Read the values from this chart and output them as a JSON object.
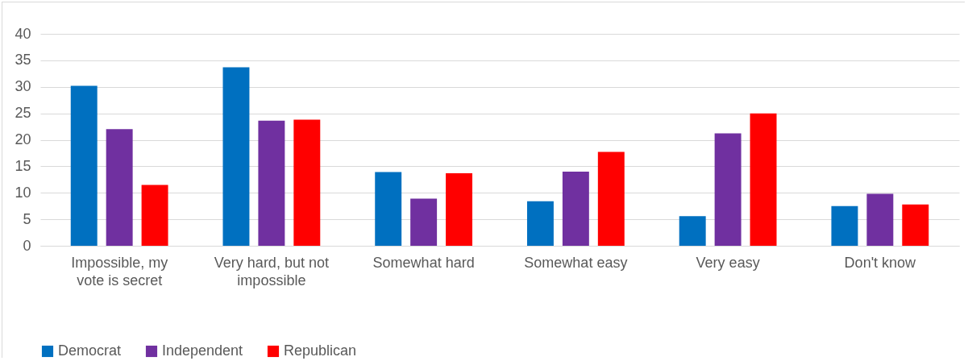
{
  "chart_data": {
    "type": "bar",
    "categories": [
      "Impossible, my vote is secret",
      "Very hard, but not impossible",
      "Somewhat hard",
      "Somewhat easy",
      "Very easy",
      "Don't know"
    ],
    "series": [
      {
        "name": "Democrat",
        "color": "#0070c0",
        "values": [
          30.2,
          33.7,
          13.9,
          8.4,
          5.6,
          7.5
        ]
      },
      {
        "name": "Independent",
        "color": "#7030a0",
        "values": [
          22.0,
          23.6,
          8.9,
          14.0,
          21.2,
          9.8
        ]
      },
      {
        "name": "Republican",
        "color": "#ff0000",
        "values": [
          11.5,
          23.8,
          13.7,
          17.7,
          25.0,
          7.8
        ]
      }
    ],
    "ylim": [
      0,
      40
    ],
    "yticks": [
      0,
      5,
      10,
      15,
      20,
      25,
      30,
      35,
      40
    ],
    "grid": "y",
    "legend": "bottom"
  }
}
